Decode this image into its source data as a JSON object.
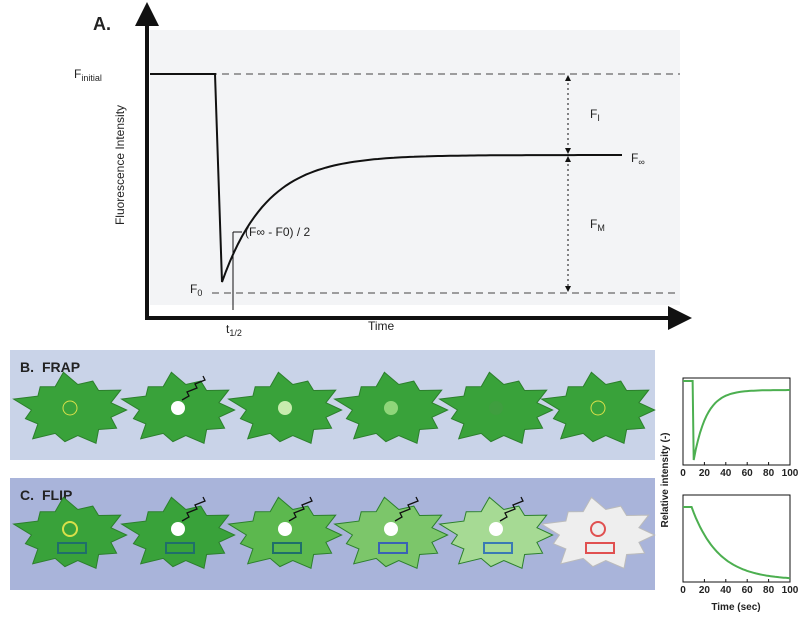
{
  "panel_a": {
    "label": "A.",
    "y_axis_label": "Fluorescence Intensity",
    "x_axis_label": "Time",
    "f_initial": {
      "main": "F",
      "sub": "initial"
    },
    "f_inf": {
      "main": "F",
      "sub": "∞"
    },
    "f_zero": {
      "main": "F",
      "sub": "0"
    },
    "f_i": {
      "main": "F",
      "sub": "I"
    },
    "f_m": {
      "main": "F",
      "sub": "M"
    },
    "half": "(F∞ - F0) / 2",
    "t_half": {
      "main": "t",
      "sub": "1/2"
    }
  },
  "panel_b": {
    "label": "B.",
    "title": "FRAP"
  },
  "panel_c": {
    "label": "C.",
    "title": "FLIP"
  },
  "side_plots": {
    "y_axis_label": "Relative intensity (-)",
    "x_axis_label": "Time (sec)",
    "x_ticks": [
      0,
      20,
      40,
      60,
      80,
      100
    ]
  }
}
